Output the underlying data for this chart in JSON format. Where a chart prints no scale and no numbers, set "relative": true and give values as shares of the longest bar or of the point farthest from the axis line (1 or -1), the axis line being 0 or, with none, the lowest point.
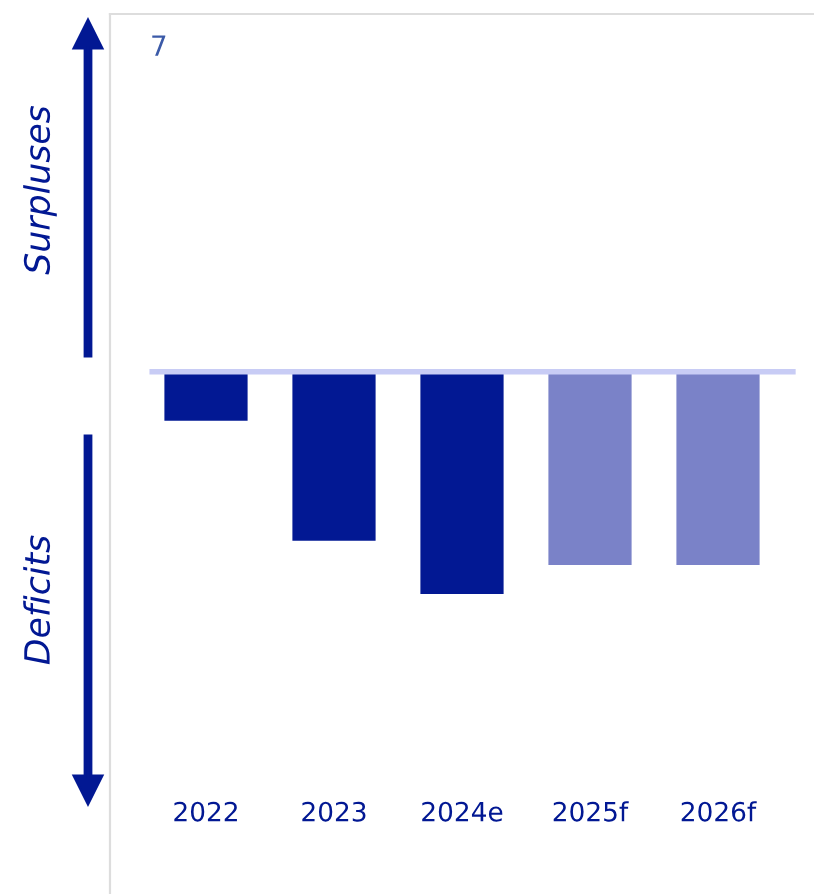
{
  "chart_data": {
    "type": "bar",
    "relative": true,
    "categories": [
      "2022",
      "2023",
      "2024e",
      "2025f",
      "2026f"
    ],
    "values": [
      -0.22,
      -0.76,
      -1,
      -0.87,
      -0.87
    ],
    "colors": [
      "#021893",
      "#021893",
      "#021893",
      "#7a82c8",
      "#7a82c8"
    ],
    "annotations": [
      "7",
      "Surpluses",
      "Deficits"
    ]
  }
}
